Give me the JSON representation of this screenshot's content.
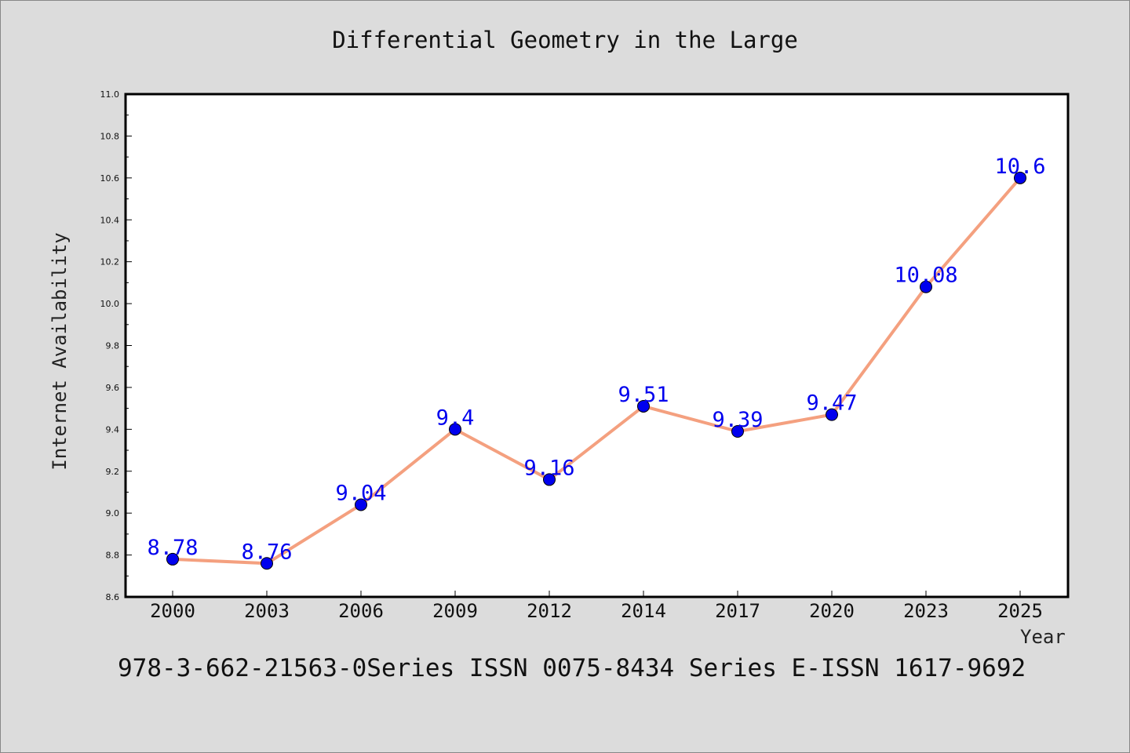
{
  "chart_data": {
    "type": "line",
    "title": "Differential Geometry in the Large",
    "xlabel": "Year",
    "ylabel": "Internet Availability",
    "categories": [
      "2000",
      "2003",
      "2006",
      "2009",
      "2012",
      "2014",
      "2017",
      "2020",
      "2023",
      "2025"
    ],
    "series": [
      {
        "values": [
          8.78,
          8.76,
          9.04,
          9.4,
          9.16,
          9.51,
          9.39,
          9.47,
          10.08,
          10.6
        ],
        "data_labels": [
          "8.78",
          "8.76",
          "9.04",
          "9.4",
          "9.16",
          "9.51",
          "9.39",
          "9.47",
          "10.08",
          "10.6"
        ],
        "line_color": "#f4a07f",
        "marker_color": "#0000ee"
      }
    ],
    "ylim": [
      8.6,
      11.0
    ],
    "yticks": [
      "8.6",
      "8.8",
      "9.0",
      "9.2",
      "9.4",
      "9.6",
      "9.8",
      "10.0",
      "10.2",
      "10.4",
      "10.6",
      "10.8",
      "11.0"
    ],
    "grid": false,
    "legend": "none",
    "label_color": "#0000ee"
  },
  "footer": "978-3-662-21563-0Series ISSN 0075-8434 Series E-ISSN 1617-9692",
  "colors": {
    "background": "#dcdcdc",
    "plot_background": "#ffffff"
  }
}
